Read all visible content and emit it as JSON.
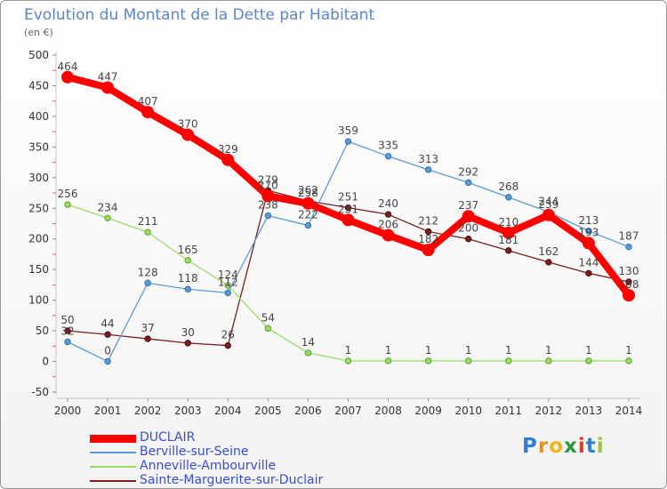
{
  "title": "Evolution du Montant de la Dette par Habitant",
  "unit": "(en €)",
  "logo": "Proxiti",
  "chart_data": {
    "type": "line",
    "x": [
      "2000",
      "2001",
      "2002",
      "2003",
      "2004",
      "2005",
      "2006",
      "2007",
      "2008",
      "2009",
      "2010",
      "2011",
      "2012",
      "2013",
      "2014"
    ],
    "ylim": [
      -50,
      500
    ],
    "yticks": [
      -50,
      0,
      50,
      100,
      150,
      200,
      250,
      300,
      350,
      400,
      450,
      500
    ],
    "grid": false,
    "legend": "bottom-left",
    "series": [
      {
        "name": "DUCLAIR",
        "color": "#ff0000",
        "values": [
          464,
          447,
          407,
          370,
          329,
          270,
          258,
          231,
          206,
          182,
          237,
          210,
          239,
          193,
          108
        ]
      },
      {
        "name": "Berville-sur-Seine",
        "color": "#5b9bd5",
        "values": [
          32,
          0,
          128,
          118,
          112,
          238,
          222,
          359,
          335,
          313,
          292,
          268,
          244,
          213,
          187
        ]
      },
      {
        "name": "Anneville-Ambourville",
        "color": "#99dd66",
        "values": [
          256,
          234,
          211,
          165,
          124,
          54,
          14,
          1,
          1,
          1,
          1,
          1,
          1,
          1,
          1
        ]
      },
      {
        "name": "Sainte-Marguerite-sur-Duclair",
        "color": "#7a1f1f",
        "values": [
          50,
          44,
          37,
          30,
          26,
          279,
          262,
          251,
          240,
          212,
          200,
          181,
          162,
          144,
          130
        ]
      }
    ]
  }
}
